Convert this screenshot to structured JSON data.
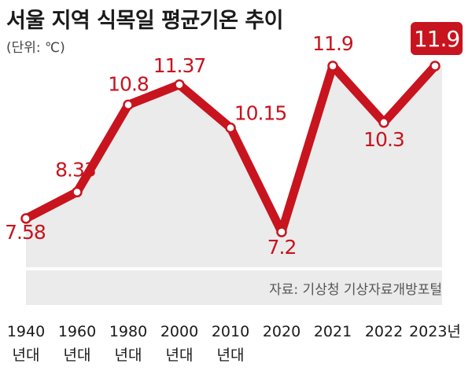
{
  "title": "서울 지역 식목일 평균기온 추이",
  "unit": "(단위: ℃)",
  "source": "자료: 기상청 기상자료개방포털",
  "colors": {
    "line": "#c8141e",
    "label": "#c8141e",
    "area": "#ebebeb",
    "highlight_bg": "#c8141e",
    "highlight_text": "#ffffff"
  },
  "chart_data": {
    "type": "line",
    "categories": [
      "1940\n년대",
      "1960\n년대",
      "1980\n년대",
      "2000\n년대",
      "2010\n년대",
      "2020",
      "2021",
      "2022",
      "2023년"
    ],
    "values": [
      7.58,
      8.33,
      10.8,
      11.37,
      10.15,
      7.2,
      11.9,
      10.3,
      11.9
    ],
    "value_labels": [
      "7.58",
      "8.33",
      "10.8",
      "11.37",
      "10.15",
      "7.2",
      "11.9",
      "10.3",
      "11.9"
    ],
    "highlight_index": 8,
    "grid": false,
    "legend": "none"
  }
}
